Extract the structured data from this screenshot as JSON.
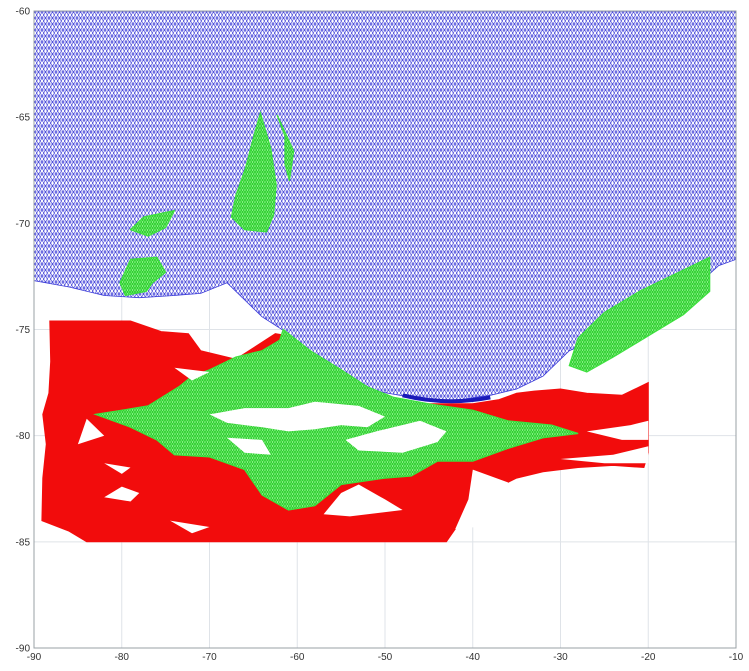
{
  "chart_data": {
    "type": "mesh-map",
    "title": "",
    "xlabel": "",
    "ylabel": "",
    "xlim": [
      -90,
      -10
    ],
    "ylim": [
      -90,
      -60
    ],
    "grid": true,
    "x_ticks": [
      -90,
      -80,
      -70,
      -60,
      -50,
      -40,
      -30,
      -20,
      -10
    ],
    "x_tick_labels": [
      "-90",
      "-80",
      "-70",
      "-60",
      "-50",
      "-40",
      "-30",
      "-20",
      "-10"
    ],
    "y_ticks": [
      -60,
      -65,
      -70,
      -75,
      -80,
      -85,
      -90
    ],
    "y_tick_labels": [
      "-60",
      "-65",
      "-70",
      "-75",
      "-80",
      "-85",
      "-90"
    ],
    "colors": {
      "ocean_mesh": "#3a3ad8",
      "ice_shelf_mesh": "#3ee03e",
      "grounded_ice": "#f20c0c",
      "grid": "#dfe3e8",
      "land": "#ffffff"
    },
    "regions": {
      "ocean": [
        [
          -90,
          -60
        ],
        [
          -10,
          -60
        ],
        [
          -10,
          -71.7
        ],
        [
          -12,
          -72
        ],
        [
          -16,
          -73.5
        ],
        [
          -20,
          -74.2
        ],
        [
          -25,
          -75.3
        ],
        [
          -29,
          -76
        ],
        [
          -32,
          -77.2
        ],
        [
          -35,
          -77.8
        ],
        [
          -38,
          -78.1
        ],
        [
          -43,
          -78.4
        ],
        [
          -47,
          -78.2
        ],
        [
          -51,
          -77.9
        ],
        [
          -55,
          -77.2
        ],
        [
          -58,
          -76.4
        ],
        [
          -61,
          -75.2
        ],
        [
          -64,
          -74.4
        ],
        [
          -66,
          -73.6
        ],
        [
          -68,
          -72.8
        ],
        [
          -71,
          -73.3
        ],
        [
          -74,
          -73.4
        ],
        [
          -78,
          -73.5
        ],
        [
          -82,
          -73.4
        ],
        [
          -86,
          -73
        ],
        [
          -90,
          -72.7
        ]
      ],
      "ice_shelves": [
        [
          [
            -61.6,
            -75
          ],
          [
            -58.5,
            -76
          ],
          [
            -55,
            -76.9
          ],
          [
            -52,
            -77.7
          ],
          [
            -49,
            -78.2
          ],
          [
            -45,
            -78.5
          ],
          [
            -40,
            -78.8
          ],
          [
            -36,
            -79.3
          ],
          [
            -31,
            -79.5
          ],
          [
            -28,
            -79.9
          ],
          [
            -32,
            -80.1
          ],
          [
            -36,
            -80.6
          ],
          [
            -40,
            -81.2
          ],
          [
            -44,
            -81.2
          ],
          [
            -47,
            -81.9
          ],
          [
            -50,
            -82
          ],
          [
            -55,
            -82.3
          ],
          [
            -58,
            -83.3
          ],
          [
            -61,
            -83.5
          ],
          [
            -64,
            -82.8
          ],
          [
            -66,
            -81.6
          ],
          [
            -70,
            -81
          ],
          [
            -74,
            -80.9
          ],
          [
            -76,
            -80.2
          ],
          [
            -79,
            -79.6
          ],
          [
            -83,
            -79
          ],
          [
            -80,
            -78.8
          ],
          [
            -77,
            -78.6
          ],
          [
            -73.5,
            -77.7
          ],
          [
            -72,
            -77.2
          ],
          [
            -70,
            -76.9
          ],
          [
            -67,
            -76.3
          ],
          [
            -64,
            -76
          ],
          [
            -62,
            -75.5
          ]
        ],
        [
          [
            -79,
            -71.7
          ],
          [
            -76,
            -71.6
          ],
          [
            -75,
            -72.3
          ],
          [
            -76.5,
            -72.8
          ],
          [
            -77.2,
            -73.2
          ],
          [
            -79.6,
            -73.4
          ],
          [
            -80.2,
            -72.8
          ]
        ],
        [
          [
            -77.5,
            -69.7
          ],
          [
            -74,
            -69.4
          ],
          [
            -75,
            -70.2
          ],
          [
            -77,
            -70.6
          ],
          [
            -79,
            -70.3
          ]
        ],
        [
          [
            -64.2,
            -64.8
          ],
          [
            -63,
            -66.5
          ],
          [
            -62.4,
            -68.2
          ],
          [
            -62.7,
            -69.6
          ],
          [
            -63.5,
            -70.4
          ],
          [
            -66,
            -70.3
          ],
          [
            -67.5,
            -69.7
          ],
          [
            -67,
            -68.7
          ],
          [
            -65.9,
            -67.4
          ],
          [
            -64.9,
            -65.8
          ]
        ],
        [
          [
            -62.3,
            -64.9
          ],
          [
            -60.4,
            -66.6
          ],
          [
            -60.9,
            -68
          ],
          [
            -61.4,
            -67.2
          ],
          [
            -61.4,
            -65.9
          ]
        ],
        [
          [
            -13,
            -71.6
          ],
          [
            -17,
            -72.4
          ],
          [
            -21,
            -73.2
          ],
          [
            -25,
            -74.2
          ],
          [
            -28,
            -75.4
          ],
          [
            -29,
            -76.7
          ],
          [
            -27,
            -77
          ],
          [
            -24,
            -76.3
          ],
          [
            -20,
            -75.3
          ],
          [
            -16,
            -74.3
          ],
          [
            -13,
            -73.2
          ]
        ]
      ],
      "grounded_ice": [
        [
          [
            -88.2,
            -74.6
          ],
          [
            -79,
            -74.6
          ],
          [
            -75.5,
            -75.1
          ],
          [
            -72.4,
            -75.2
          ],
          [
            -71,
            -76
          ],
          [
            -67,
            -76.4
          ],
          [
            -62.5,
            -75.2
          ],
          [
            -61,
            -75.3
          ],
          [
            -58,
            -76.4
          ],
          [
            -55,
            -77.3
          ],
          [
            -52,
            -78
          ],
          [
            -48,
            -78.5
          ],
          [
            -44,
            -78.5
          ],
          [
            -40,
            -78.5
          ],
          [
            -37,
            -78.3
          ],
          [
            -35,
            -78
          ],
          [
            -33,
            -77.9
          ],
          [
            -30,
            -77.8
          ],
          [
            -27,
            -78
          ],
          [
            -23,
            -78.1
          ],
          [
            -21.5,
            -77.8
          ],
          [
            -20,
            -77.5
          ],
          [
            -20,
            -79
          ],
          [
            -20,
            -80.8
          ],
          [
            -20.5,
            -81.5
          ],
          [
            -24,
            -81.4
          ],
          [
            -28,
            -81.5
          ],
          [
            -32,
            -81.7
          ],
          [
            -35,
            -82
          ],
          [
            -38,
            -82.6
          ],
          [
            -40,
            -83.6
          ],
          [
            -42,
            -84.4
          ],
          [
            -43,
            -85
          ],
          [
            -45,
            -85
          ],
          [
            -50,
            -85
          ],
          [
            -55,
            -85
          ],
          [
            -60,
            -85
          ],
          [
            -65,
            -85
          ],
          [
            -70,
            -85
          ],
          [
            -75,
            -85
          ],
          [
            -80,
            -85
          ],
          [
            -84,
            -85
          ],
          [
            -86,
            -84.5
          ],
          [
            -89.1,
            -84
          ],
          [
            -89,
            -82
          ],
          [
            -88.6,
            -80.4
          ],
          [
            -89,
            -79
          ],
          [
            -88.3,
            -78
          ],
          [
            -88.1,
            -76.5
          ]
        ]
      ],
      "land_holes": [
        [
          [
            -61,
            -78.7
          ],
          [
            -58,
            -78.4
          ],
          [
            -53,
            -78.6
          ],
          [
            -50,
            -79.1
          ],
          [
            -52,
            -79.6
          ],
          [
            -55,
            -79.5
          ],
          [
            -58,
            -79.7
          ],
          [
            -61,
            -79.8
          ],
          [
            -64,
            -79.6
          ],
          [
            -68,
            -79.4
          ],
          [
            -70,
            -79
          ],
          [
            -66,
            -78.7
          ]
        ],
        [
          [
            -68,
            -80.1
          ],
          [
            -66,
            -80.8
          ],
          [
            -63,
            -80.9
          ],
          [
            -64,
            -80.2
          ]
        ],
        [
          [
            -46,
            -79.3
          ],
          [
            -43,
            -79.8
          ],
          [
            -44,
            -80.3
          ],
          [
            -48,
            -80.8
          ],
          [
            -53,
            -80.7
          ],
          [
            -54.5,
            -80.2
          ],
          [
            -51,
            -79.8
          ]
        ],
        [
          [
            -40,
            -81.6
          ],
          [
            -36,
            -82.2
          ],
          [
            -35,
            -83.5
          ],
          [
            -37,
            -84.2
          ],
          [
            -42,
            -84.4
          ],
          [
            -40.5,
            -83
          ]
        ],
        [
          [
            -53,
            -82.3
          ],
          [
            -50,
            -83
          ],
          [
            -48,
            -83.5
          ],
          [
            -54,
            -83.8
          ],
          [
            -57,
            -83.7
          ],
          [
            -55,
            -82.7
          ]
        ],
        [
          [
            -80,
            -82.4
          ],
          [
            -78,
            -82.7
          ],
          [
            -79,
            -83.1
          ],
          [
            -82,
            -82.9
          ]
        ],
        [
          [
            -82,
            -81.3
          ],
          [
            -79,
            -81.5
          ],
          [
            -80,
            -81.8
          ]
        ],
        [
          [
            -20,
            -79.3
          ],
          [
            -22,
            -79.5
          ],
          [
            -27,
            -79.8
          ],
          [
            -23,
            -80.2
          ],
          [
            -20,
            -80.2
          ]
        ],
        [
          [
            -20,
            -80.5
          ],
          [
            -24,
            -80.9
          ],
          [
            -30,
            -81.1
          ],
          [
            -25,
            -81.3
          ],
          [
            -20,
            -81.3
          ]
        ],
        [
          [
            -74,
            -76.8
          ],
          [
            -70,
            -77
          ],
          [
            -72,
            -77.4
          ]
        ],
        [
          [
            -84,
            -79.2
          ],
          [
            -82,
            -80
          ],
          [
            -85,
            -80.4
          ]
        ],
        [
          [
            -74.5,
            -84
          ],
          [
            -70,
            -84.3
          ],
          [
            -72,
            -84.6
          ]
        ]
      ]
    }
  }
}
